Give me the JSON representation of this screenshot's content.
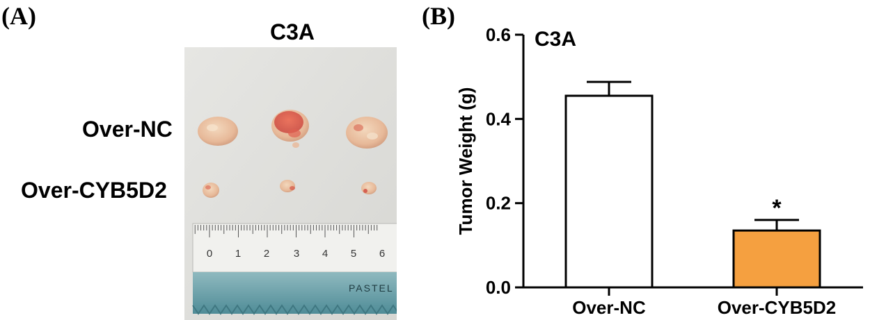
{
  "panel_a": {
    "label": "(A)",
    "title": "C3A",
    "rows": [
      "Over-NC",
      "Over-CYB5D2"
    ],
    "ruler_numbers": [
      "0",
      "1",
      "2",
      "3",
      "4",
      "5",
      "6"
    ],
    "ruler_brand": "PASTEL"
  },
  "panel_b": {
    "label": "(B)"
  },
  "chart_data": {
    "type": "bar",
    "title": "C3A",
    "categories": [
      "Over-NC",
      "Over-CYB5D2"
    ],
    "values": [
      0.455,
      0.135
    ],
    "errors": [
      0.033,
      0.025
    ],
    "colors": [
      "#ffffff",
      "#f5a040"
    ],
    "significance": [
      "",
      "*"
    ],
    "xlabel": "",
    "ylabel": "Tumor Weight (g)",
    "ylim": [
      0,
      0.6
    ],
    "yticks": [
      0.0,
      0.2,
      0.4,
      0.6
    ],
    "ytick_labels": [
      "0.0",
      "0.2",
      "0.4",
      "0.6"
    ],
    "grid": false
  }
}
